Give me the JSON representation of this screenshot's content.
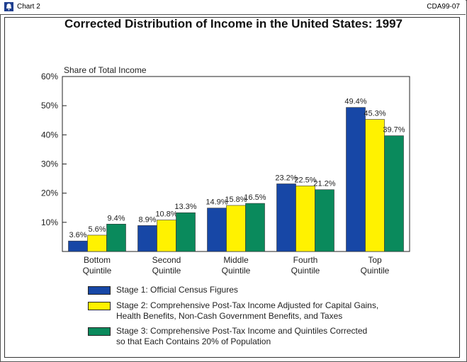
{
  "header": {
    "label": "Chart 2",
    "id": "CDA99-07"
  },
  "chart_data": {
    "type": "bar",
    "title": "Corrected Distribution of Income in the United States: 1997",
    "ylabel": "Share of Total Income",
    "ylim": [
      0,
      60
    ],
    "yticks": [
      "10%",
      "20%",
      "30%",
      "40%",
      "50%",
      "60%"
    ],
    "ytick_values": [
      10,
      20,
      30,
      40,
      50,
      60
    ],
    "categories": [
      "Bottom\nQuintile",
      "Second\nQuintile",
      "Middle\nQuintile",
      "Fourth\nQuintile",
      "Top\nQuintile"
    ],
    "series": [
      {
        "name": "Stage 1:  Official Census Figures",
        "color": "#1747a6",
        "values": [
          3.6,
          8.9,
          14.9,
          23.2,
          49.4
        ],
        "labels": [
          "3.6%",
          "8.9%",
          "14.9%",
          "23.2%",
          "49.4%"
        ]
      },
      {
        "name": "Stage 2:  Comprehensive Post-Tax Income Adjusted for Capital Gains,\nHealth Benefits, Non-Cash Government Benefits, and Taxes",
        "color": "#fff200",
        "values": [
          5.6,
          10.8,
          15.8,
          22.5,
          45.3
        ],
        "labels": [
          "5.6%",
          "10.8%",
          "15.8%",
          "22.5%",
          "45.3%"
        ]
      },
      {
        "name": "Stage 3:  Comprehensive Post-Tax Income and Quintiles Corrected\nso that Each Contains 20% of Population",
        "color": "#0a8a5c",
        "values": [
          9.4,
          13.3,
          16.5,
          21.2,
          39.7
        ],
        "labels": [
          "9.4%",
          "13.3%",
          "16.5%",
          "21.2%",
          "39.7%"
        ]
      }
    ]
  }
}
